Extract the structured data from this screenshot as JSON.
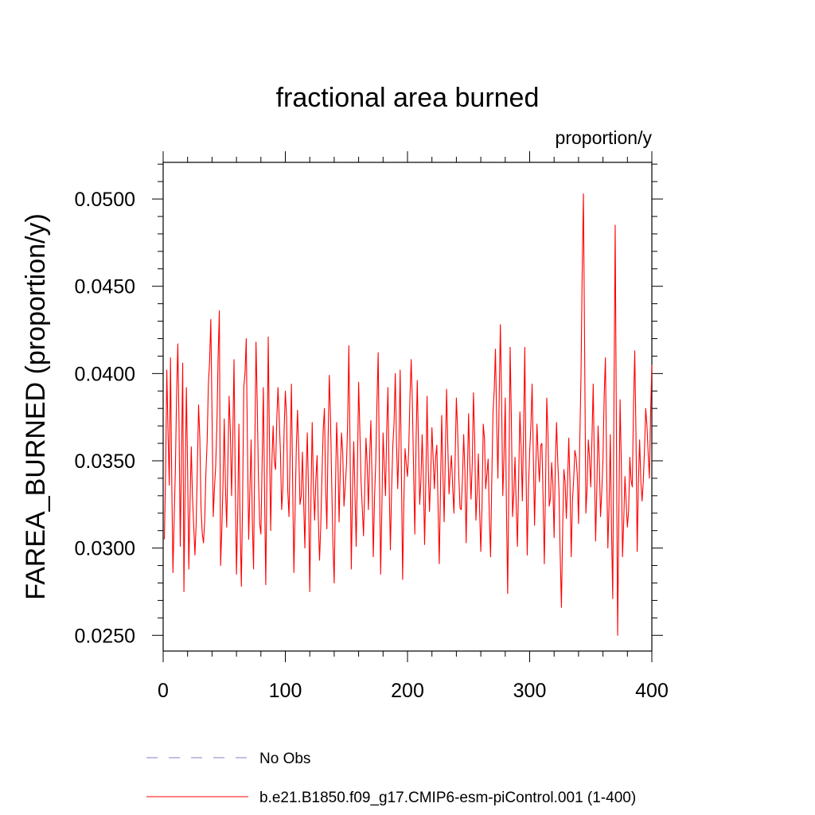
{
  "chart_data": {
    "type": "line",
    "title": "fractional area burned",
    "subtitle": "proportion/y",
    "ylabel": "FAREA_BURNED  (proportion/y)",
    "xlabel": "",
    "xlim": [
      0,
      400
    ],
    "ylim": [
      0.0241,
      0.0521
    ],
    "x_ticks": [
      0,
      100,
      200,
      300,
      400
    ],
    "x_tick_labels": [
      "0",
      "100",
      "200",
      "300",
      "400"
    ],
    "y_ticks": [
      0.025,
      0.03,
      0.035,
      0.04,
      0.045,
      0.05
    ],
    "y_tick_labels": [
      "0.0250",
      "0.0300",
      "0.0350",
      "0.0400",
      "0.0450",
      "0.0500"
    ],
    "grid": false,
    "legend_position": "bottom",
    "legend": [
      {
        "label": "No Obs",
        "color": "#8080c8",
        "style": "dashed"
      },
      {
        "label": "b.e21.B1850.f09_g17.CMIP6-esm-piControl.001 (1-400)",
        "color": "#ff0000",
        "style": "solid"
      }
    ],
    "series": [
      {
        "name": "b.e21.B1850.f09_g17.CMIP6-esm-piControl.001 (1-400)",
        "color": "#ff0000",
        "x_start": 1,
        "x_step": 1,
        "anchors": [
          [
            1,
            0.0305
          ],
          [
            3,
            0.0402
          ],
          [
            5,
            0.0336
          ],
          [
            6,
            0.0409
          ],
          [
            8,
            0.0286
          ],
          [
            10,
            0.0345
          ],
          [
            12,
            0.0417
          ],
          [
            14,
            0.0301
          ],
          [
            16,
            0.0406
          ],
          [
            17,
            0.0275
          ],
          [
            19,
            0.0392
          ],
          [
            21,
            0.0288
          ],
          [
            23,
            0.0358
          ],
          [
            26,
            0.0296
          ],
          [
            29,
            0.0382
          ],
          [
            31,
            0.0323
          ],
          [
            33,
            0.0303
          ],
          [
            36,
            0.0361
          ],
          [
            39,
            0.0431
          ],
          [
            41,
            0.0318
          ],
          [
            44,
            0.0371
          ],
          [
            46,
            0.0436
          ],
          [
            47,
            0.029
          ],
          [
            50,
            0.0374
          ],
          [
            52,
            0.0312
          ],
          [
            54,
            0.0387
          ],
          [
            56,
            0.033
          ],
          [
            58,
            0.0408
          ],
          [
            60,
            0.0285
          ],
          [
            62,
            0.0371
          ],
          [
            64,
            0.0278
          ],
          [
            66,
            0.0392
          ],
          [
            68,
            0.042
          ],
          [
            70,
            0.0305
          ],
          [
            72,
            0.0362
          ],
          [
            74,
            0.0288
          ],
          [
            76,
            0.0418
          ],
          [
            78,
            0.034
          ],
          [
            80,
            0.0308
          ],
          [
            82,
            0.0392
          ],
          [
            84,
            0.0279
          ],
          [
            86,
            0.0421
          ],
          [
            88,
            0.031
          ],
          [
            90,
            0.037
          ],
          [
            92,
            0.0345
          ],
          [
            94,
            0.0392
          ],
          [
            97,
            0.0322
          ],
          [
            100,
            0.039
          ],
          [
            103,
            0.0318
          ],
          [
            105,
            0.0394
          ],
          [
            107,
            0.0286
          ],
          [
            110,
            0.0379
          ],
          [
            112,
            0.0325
          ],
          [
            114,
            0.0355
          ],
          [
            116,
            0.03
          ],
          [
            118,
            0.0366
          ],
          [
            120,
            0.0275
          ],
          [
            122,
            0.0372
          ],
          [
            124,
            0.0316
          ],
          [
            126,
            0.0353
          ],
          [
            128,
            0.0293
          ],
          [
            130,
            0.0342
          ],
          [
            132,
            0.038
          ],
          [
            134,
            0.0311
          ],
          [
            136,
            0.0399
          ],
          [
            138,
            0.0336
          ],
          [
            140,
            0.028
          ],
          [
            142,
            0.0372
          ],
          [
            144,
            0.0315
          ],
          [
            146,
            0.0366
          ],
          [
            148,
            0.0324
          ],
          [
            150,
            0.0347
          ],
          [
            152,
            0.0416
          ],
          [
            154,
            0.0288
          ],
          [
            156,
            0.0361
          ],
          [
            158,
            0.0301
          ],
          [
            160,
            0.0395
          ],
          [
            162,
            0.0338
          ],
          [
            164,
            0.0307
          ],
          [
            166,
            0.0363
          ],
          [
            168,
            0.0322
          ],
          [
            170,
            0.0373
          ],
          [
            172,
            0.0295
          ],
          [
            174,
            0.0349
          ],
          [
            176,
            0.0412
          ],
          [
            178,
            0.0285
          ],
          [
            180,
            0.0366
          ],
          [
            182,
            0.033
          ],
          [
            184,
            0.0392
          ],
          [
            186,
            0.0299
          ],
          [
            188,
            0.0359
          ],
          [
            190,
            0.04
          ],
          [
            192,
            0.0334
          ],
          [
            194,
            0.0402
          ],
          [
            196,
            0.0282
          ],
          [
            198,
            0.0357
          ],
          [
            200,
            0.0341
          ],
          [
            203,
            0.0408
          ],
          [
            206,
            0.0308
          ],
          [
            208,
            0.0396
          ],
          [
            210,
            0.0325
          ],
          [
            212,
            0.0365
          ],
          [
            214,
            0.0302
          ],
          [
            216,
            0.0387
          ],
          [
            218,
            0.0321
          ],
          [
            220,
            0.0369
          ],
          [
            222,
            0.0334
          ],
          [
            224,
            0.0359
          ],
          [
            226,
            0.0291
          ],
          [
            228,
            0.0376
          ],
          [
            230,
            0.0315
          ],
          [
            232,
            0.0391
          ],
          [
            234,
            0.0331
          ],
          [
            236,
            0.0353
          ],
          [
            238,
            0.032
          ],
          [
            240,
            0.0386
          ],
          [
            242,
            0.0341
          ],
          [
            244,
            0.0322
          ],
          [
            246,
            0.0365
          ],
          [
            248,
            0.0303
          ],
          [
            250,
            0.0377
          ],
          [
            252,
            0.0328
          ],
          [
            254,
            0.0389
          ],
          [
            256,
            0.0316
          ],
          [
            258,
            0.0354
          ],
          [
            260,
            0.0298
          ],
          [
            262,
            0.0371
          ],
          [
            264,
            0.0334
          ],
          [
            266,
            0.0351
          ],
          [
            268,
            0.0295
          ],
          [
            270,
            0.0378
          ],
          [
            272,
            0.0414
          ],
          [
            274,
            0.034
          ],
          [
            276,
            0.0428
          ],
          [
            278,
            0.033
          ],
          [
            280,
            0.0386
          ],
          [
            282,
            0.0274
          ],
          [
            284,
            0.0415
          ],
          [
            286,
            0.0318
          ],
          [
            288,
            0.0352
          ],
          [
            290,
            0.0301
          ],
          [
            292,
            0.0378
          ],
          [
            294,
            0.0327
          ],
          [
            296,
            0.0415
          ],
          [
            298,
            0.0296
          ],
          [
            300,
            0.0355
          ],
          [
            302,
            0.0394
          ],
          [
            304,
            0.0313
          ],
          [
            306,
            0.0371
          ],
          [
            308,
            0.0338
          ],
          [
            310,
            0.036
          ],
          [
            312,
            0.0291
          ],
          [
            314,
            0.0386
          ],
          [
            316,
            0.0324
          ],
          [
            318,
            0.0349
          ],
          [
            320,
            0.0306
          ],
          [
            322,
            0.0372
          ],
          [
            324,
            0.0333
          ],
          [
            326,
            0.0266
          ],
          [
            328,
            0.0345
          ],
          [
            330,
            0.0317
          ],
          [
            332,
            0.0363
          ],
          [
            334,
            0.0295
          ],
          [
            336,
            0.0339
          ],
          [
            338,
            0.0352
          ],
          [
            340,
            0.0314
          ],
          [
            342,
            0.0398
          ],
          [
            344,
            0.0503
          ],
          [
            346,
            0.032
          ],
          [
            348,
            0.0362
          ],
          [
            350,
            0.0335
          ],
          [
            352,
            0.0394
          ],
          [
            354,
            0.0304
          ],
          [
            356,
            0.037
          ],
          [
            358,
            0.0318
          ],
          [
            360,
            0.0351
          ],
          [
            362,
            0.0409
          ],
          [
            364,
            0.03
          ],
          [
            366,
            0.0365
          ],
          [
            368,
            0.0271
          ],
          [
            370,
            0.0485
          ],
          [
            372,
            0.025
          ],
          [
            374,
            0.0385
          ],
          [
            376,
            0.0295
          ],
          [
            378,
            0.0341
          ],
          [
            380,
            0.0312
          ],
          [
            382,
            0.0352
          ],
          [
            384,
            0.0335
          ],
          [
            386,
            0.0413
          ],
          [
            388,
            0.0298
          ],
          [
            390,
            0.0362
          ],
          [
            392,
            0.0327
          ],
          [
            395,
            0.038
          ],
          [
            398,
            0.034
          ],
          [
            400,
            0.0405
          ]
        ]
      }
    ]
  }
}
